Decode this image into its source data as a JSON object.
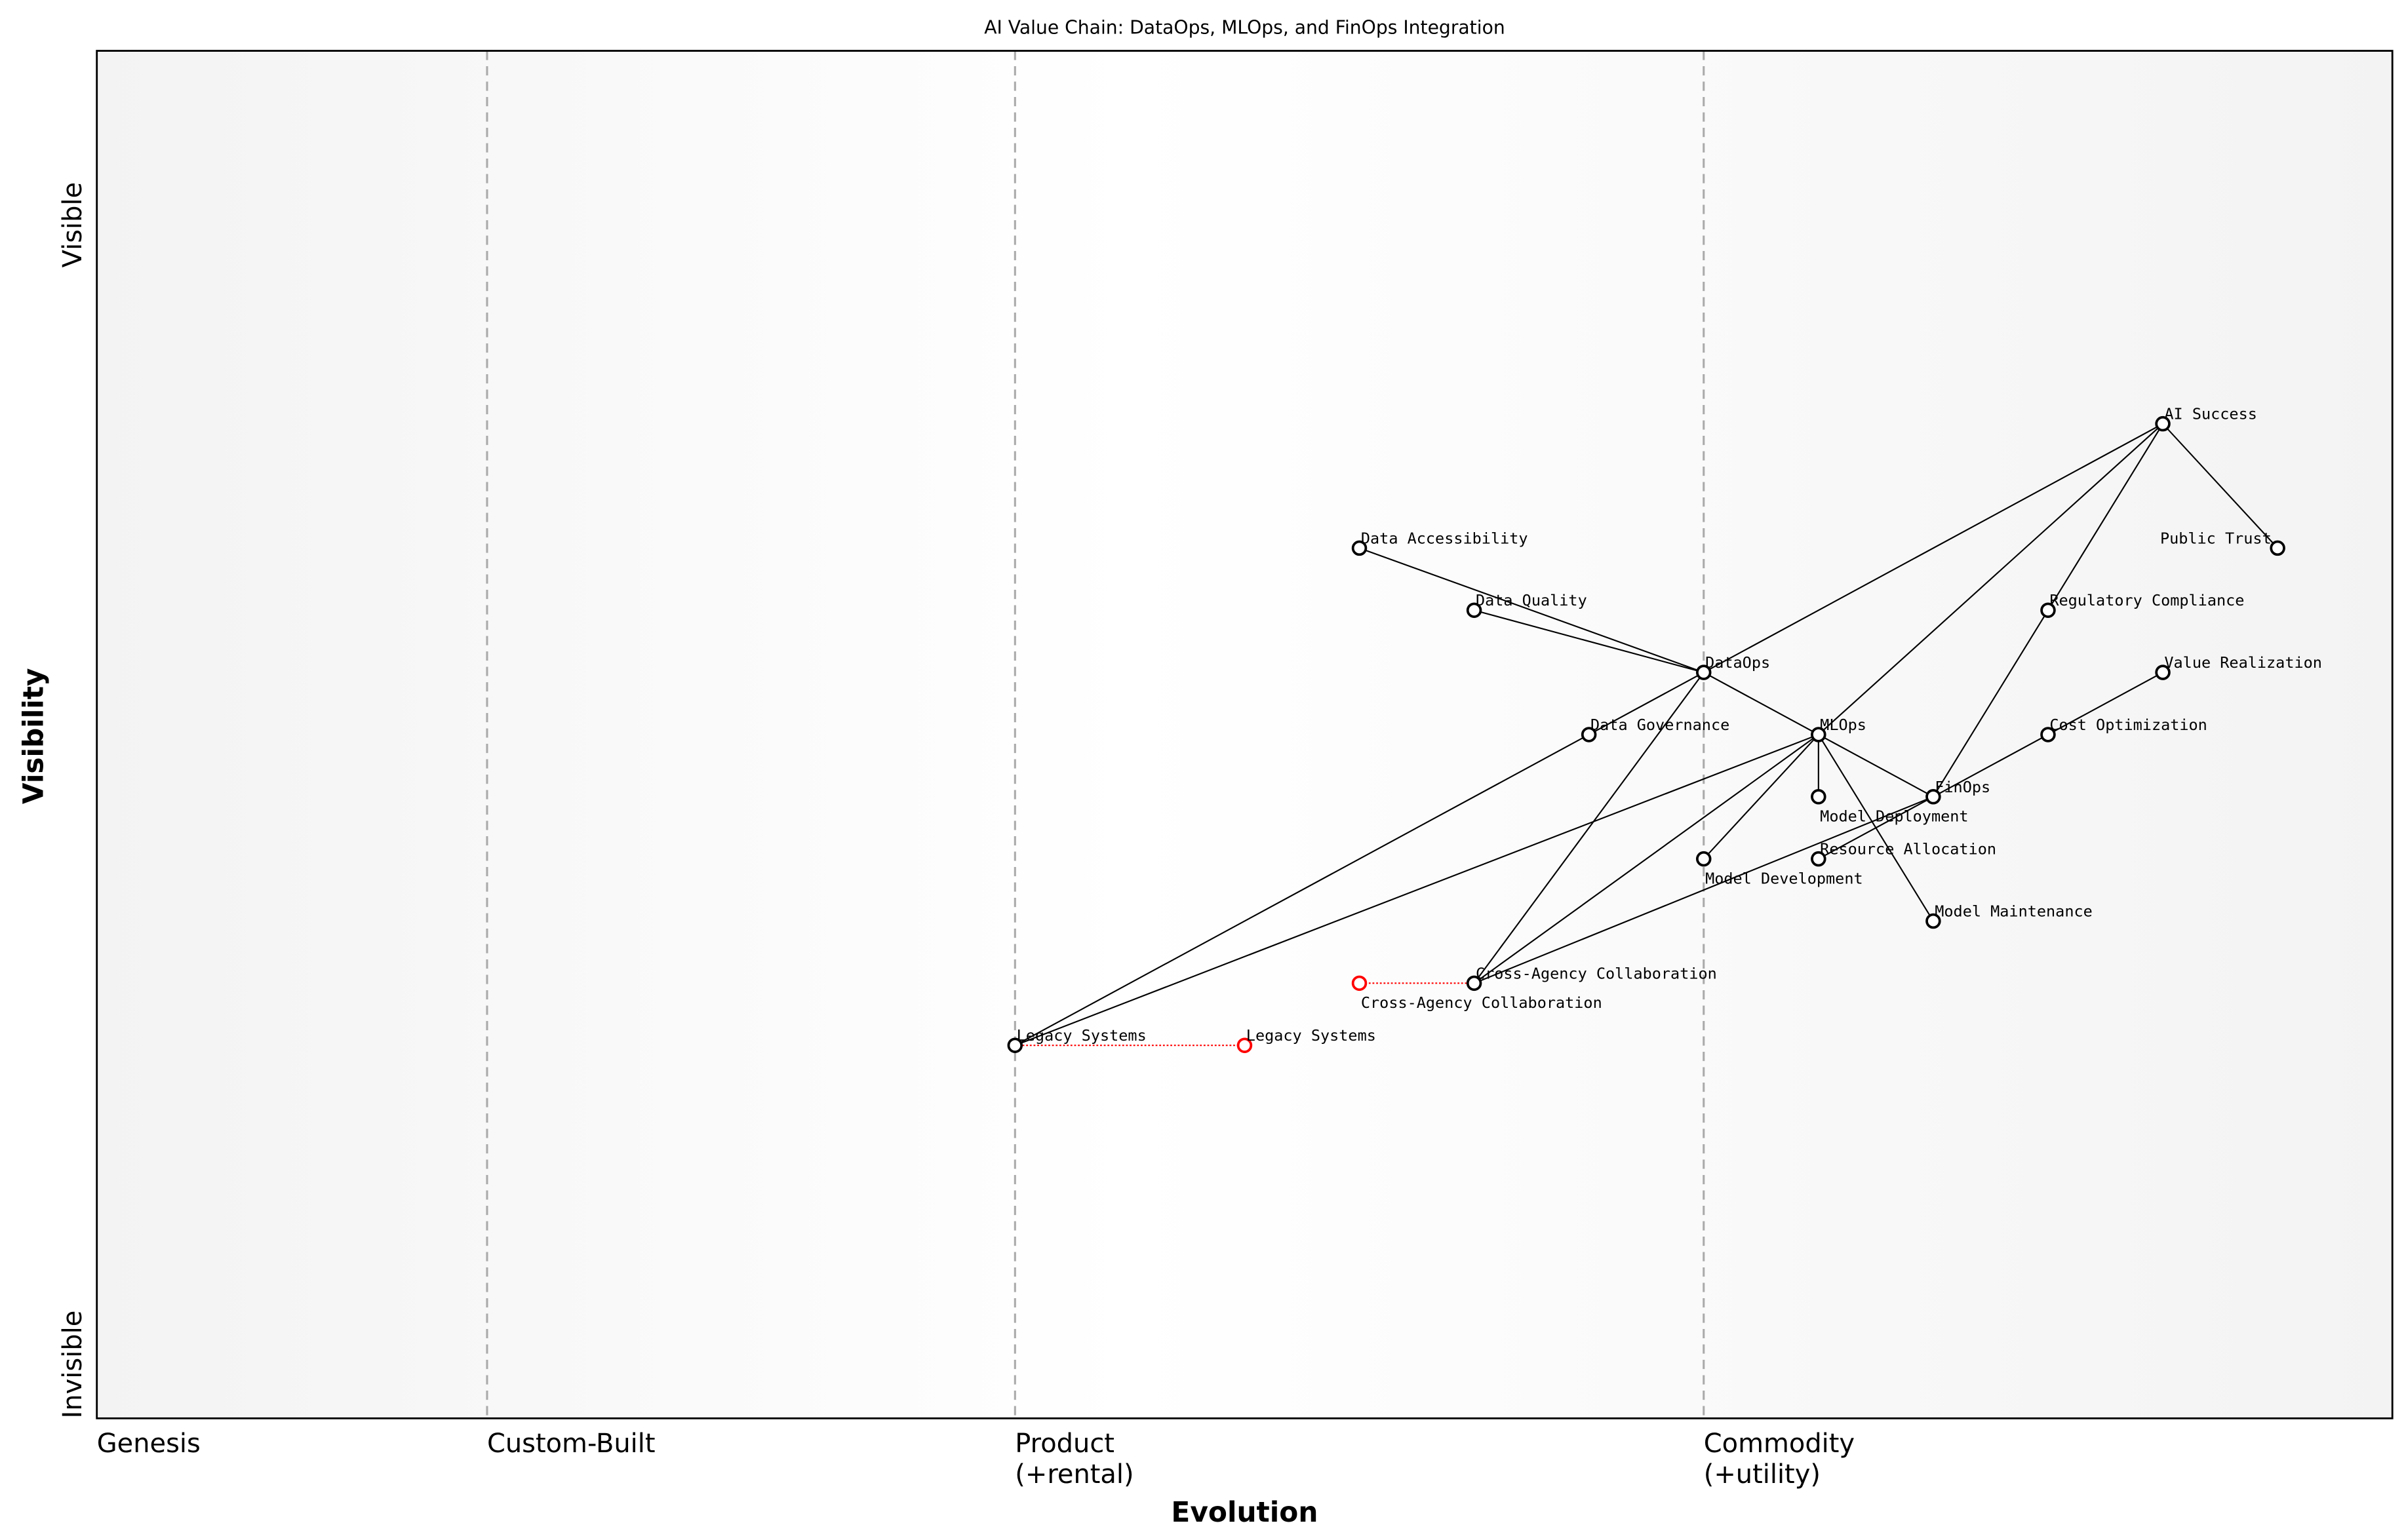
{
  "title": "AI Value Chain: DataOps, MLOps, and FinOps Integration",
  "xlabel": "Evolution",
  "ylabel": "Visibility",
  "y_ticks": {
    "top": "Visible",
    "bottom": "Invisible"
  },
  "stages": [
    {
      "label": "Genesis",
      "x": 0.0
    },
    {
      "label": "Custom-Built",
      "x": 0.17
    },
    {
      "label": "Product\n(+rental)",
      "x": 0.4
    },
    {
      "label": "Commodity\n(+utility)",
      "x": 0.7
    }
  ],
  "ylim": [
    0,
    1.1
  ],
  "xlim": [
    0,
    1
  ],
  "colors": {
    "node": "#000000",
    "evolved": "#ff0000",
    "stage_line": "#aaaaaa"
  },
  "components": [
    {
      "name": "AI Success",
      "evolution": 0.9,
      "visibility": 0.8
    },
    {
      "name": "Public Trust",
      "evolution": 0.95,
      "visibility": 0.7
    },
    {
      "name": "Data Accessibility",
      "evolution": 0.55,
      "visibility": 0.7
    },
    {
      "name": "Data Quality",
      "evolution": 0.6,
      "visibility": 0.65
    },
    {
      "name": "Regulatory Compliance",
      "evolution": 0.85,
      "visibility": 0.65
    },
    {
      "name": "DataOps",
      "evolution": 0.7,
      "visibility": 0.6
    },
    {
      "name": "Value Realization",
      "evolution": 0.9,
      "visibility": 0.6
    },
    {
      "name": "Data Governance",
      "evolution": 0.65,
      "visibility": 0.55
    },
    {
      "name": "MLOps",
      "evolution": 0.75,
      "visibility": 0.55
    },
    {
      "name": "Cost Optimization",
      "evolution": 0.85,
      "visibility": 0.55
    },
    {
      "name": "Model Deployment",
      "evolution": 0.75,
      "visibility": 0.5
    },
    {
      "name": "FinOps",
      "evolution": 0.8,
      "visibility": 0.5
    },
    {
      "name": "Model Development",
      "evolution": 0.7,
      "visibility": 0.45
    },
    {
      "name": "Resource Allocation",
      "evolution": 0.75,
      "visibility": 0.45
    },
    {
      "name": "Model Maintenance",
      "evolution": 0.8,
      "visibility": 0.4
    },
    {
      "name": "Cross-Agency Collaboration",
      "evolution": 0.6,
      "visibility": 0.35
    },
    {
      "name": "Legacy Systems",
      "evolution": 0.4,
      "visibility": 0.3
    }
  ],
  "evolved": [
    {
      "name": "Cross-Agency Collaboration",
      "from": 0.6,
      "to": 0.55,
      "visibility": 0.35
    },
    {
      "name": "Legacy Systems",
      "from": 0.4,
      "to": 0.5,
      "visibility": 0.3
    }
  ],
  "links": [
    [
      "AI Success",
      "Public Trust"
    ],
    [
      "AI Success",
      "DataOps"
    ],
    [
      "AI Success",
      "MLOps"
    ],
    [
      "AI Success",
      "Regulatory Compliance"
    ],
    [
      "Regulatory Compliance",
      "FinOps"
    ],
    [
      "Data Accessibility",
      "DataOps"
    ],
    [
      "Data Quality",
      "DataOps"
    ],
    [
      "DataOps",
      "MLOps"
    ],
    [
      "DataOps",
      "Data Governance"
    ],
    [
      "DataOps",
      "Cross-Agency Collaboration"
    ],
    [
      "MLOps",
      "FinOps"
    ],
    [
      "MLOps",
      "Model Deployment"
    ],
    [
      "MLOps",
      "Model Development"
    ],
    [
      "MLOps",
      "Model Maintenance"
    ],
    [
      "MLOps",
      "Legacy Systems"
    ],
    [
      "MLOps",
      "Cross-Agency Collaboration"
    ],
    [
      "Data Governance",
      "Legacy Systems"
    ],
    [
      "FinOps",
      "Cost Optimization"
    ],
    [
      "Cost Optimization",
      "Value Realization"
    ],
    [
      "FinOps",
      "Resource Allocation"
    ],
    [
      "FinOps",
      "Cross-Agency Collaboration"
    ]
  ]
}
